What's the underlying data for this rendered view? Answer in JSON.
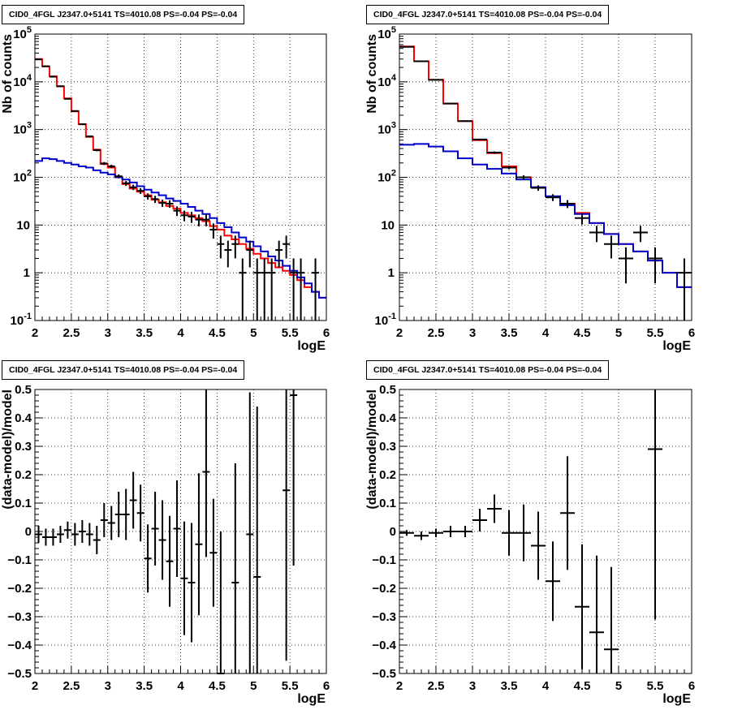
{
  "colors": {
    "data": "#000000",
    "total_model": "#ff0000",
    "background_model": "#0000cc",
    "grid": "#000000"
  },
  "chart_data": [
    {
      "type": "histogram",
      "title": "CID0_4FGL J2347.0+5141 TS=4010.08 PS=-0.04 PS=-0.04",
      "xlabel": "logE",
      "ylabel": "Nb of counts",
      "xlim": [
        2,
        6
      ],
      "ylim": [
        0.1,
        100000
      ],
      "yscale": "log",
      "grid": true,
      "xticks": [
        "2",
        "2.5",
        "3",
        "3.5",
        "4",
        "4.5",
        "5",
        "5.5",
        "6"
      ],
      "yticks": [
        "10^-1",
        "1",
        "10",
        "10^2",
        "10^3",
        "10^4",
        "10^5"
      ],
      "bin_edges": [
        2.0,
        2.1,
        2.2,
        2.3,
        2.4,
        2.5,
        2.6,
        2.7,
        2.8,
        2.9,
        3.0,
        3.1,
        3.2,
        3.3,
        3.4,
        3.5,
        3.6,
        3.7,
        3.8,
        3.9,
        4.0,
        4.1,
        4.2,
        4.3,
        4.4,
        4.5,
        4.6,
        4.7,
        4.8,
        4.9,
        5.0,
        5.1,
        5.2,
        5.3,
        5.4,
        5.5,
        5.6,
        5.7,
        5.8,
        5.9,
        6.0
      ],
      "series": [
        {
          "name": "total model",
          "style": "step",
          "values": [
            30000,
            21000,
            13000,
            8000,
            4500,
            2400,
            1300,
            700,
            380,
            190,
            160,
            100,
            72,
            58,
            50,
            42,
            34,
            30,
            25,
            22,
            18,
            16,
            14,
            12,
            9.5,
            8,
            6,
            5,
            4,
            3.2,
            2.5,
            2,
            1.6,
            1.3,
            1.1,
            0.9,
            0.7,
            0.5,
            0.4,
            0.3
          ]
        },
        {
          "name": "background model",
          "style": "step",
          "values": [
            220,
            250,
            240,
            220,
            200,
            185,
            170,
            160,
            140,
            125,
            115,
            100,
            90,
            78,
            65,
            55,
            48,
            42,
            36,
            32,
            28,
            24,
            20,
            17,
            14,
            11,
            9,
            7,
            5.5,
            4.5,
            3.6,
            2.8,
            2.2,
            1.8,
            1.4,
            1.1,
            0.8,
            0.6,
            0.4,
            0.3
          ]
        },
        {
          "name": "data",
          "style": "errorbar",
          "x": [
            2.05,
            2.15,
            2.25,
            2.35,
            2.45,
            2.55,
            2.65,
            2.75,
            2.85,
            2.95,
            3.05,
            3.15,
            3.25,
            3.35,
            3.45,
            3.55,
            3.65,
            3.75,
            3.85,
            3.95,
            4.05,
            4.15,
            4.25,
            4.35,
            4.45,
            4.55,
            4.65,
            4.75,
            4.85,
            4.95,
            5.05,
            5.15,
            5.25,
            5.35,
            5.45,
            5.55,
            5.65,
            5.75,
            5.85
          ],
          "y": [
            29500,
            21200,
            12800,
            8100,
            4400,
            2450,
            1290,
            720,
            370,
            195,
            170,
            105,
            75,
            62,
            52,
            40,
            35,
            29,
            28,
            20,
            16,
            15,
            13,
            13,
            8,
            4,
            3,
            4,
            1,
            3,
            1,
            1,
            1,
            3,
            4,
            1,
            1,
            0,
            1
          ],
          "yerr": [
            172,
            146,
            113,
            90,
            66,
            50,
            36,
            27,
            19,
            14,
            13,
            10,
            9,
            8,
            7,
            6,
            6,
            5,
            5,
            4.5,
            4,
            3.9,
            3.6,
            3.6,
            2.8,
            2,
            1.7,
            2,
            1,
            1.7,
            1,
            1,
            1,
            1.7,
            2,
            1,
            1,
            0,
            1
          ]
        }
      ]
    },
    {
      "type": "histogram",
      "title": "CID0_4FGL J2347.0+5141 TS=4010.08 PS=-0.04 PS=-0.04",
      "xlabel": "logE",
      "ylabel": "Nb of counts",
      "xlim": [
        2,
        6
      ],
      "ylim": [
        0.1,
        100000
      ],
      "yscale": "log",
      "grid": true,
      "xticks": [
        "2",
        "2.5",
        "3",
        "3.5",
        "4",
        "4.5",
        "5",
        "5.5",
        "6"
      ],
      "yticks": [
        "10^-1",
        "1",
        "10",
        "10^2",
        "10^3",
        "10^4",
        "10^5"
      ],
      "bin_edges": [
        2.0,
        2.2,
        2.4,
        2.6,
        2.8,
        3.0,
        3.2,
        3.4,
        3.6,
        3.8,
        4.0,
        4.2,
        4.4,
        4.6,
        4.8,
        5.0,
        5.2,
        5.4,
        5.6,
        5.8,
        6.0
      ],
      "series": [
        {
          "name": "total model",
          "style": "step",
          "values": [
            55000,
            27000,
            11000,
            3500,
            1500,
            600,
            320,
            170,
            100,
            62,
            40,
            28,
            18,
            11,
            6.5,
            4,
            2.8,
            1.8,
            1,
            0.5
          ]
        },
        {
          "name": "background model",
          "style": "step",
          "values": [
            480,
            500,
            440,
            350,
            250,
            185,
            150,
            120,
            90,
            62,
            40,
            26,
            17,
            11,
            6.5,
            4,
            2.8,
            1.8,
            1,
            0.5
          ]
        },
        {
          "name": "data",
          "style": "errorbar",
          "x": [
            2.1,
            2.3,
            2.5,
            2.7,
            2.9,
            3.1,
            3.3,
            3.5,
            3.7,
            3.9,
            4.1,
            4.3,
            4.5,
            4.7,
            4.9,
            5.1,
            5.3,
            5.5,
            5.7,
            5.9
          ],
          "y": [
            54000,
            27000,
            11000,
            3500,
            1500,
            620,
            330,
            160,
            100,
            60,
            38,
            28,
            14,
            7,
            4,
            2,
            7,
            2,
            0,
            1
          ],
          "yerr": [
            232,
            164,
            105,
            59,
            39,
            25,
            18,
            13,
            10,
            7.7,
            6.2,
            5.3,
            3.7,
            2.6,
            2,
            1.4,
            2.6,
            1.4,
            0,
            1
          ]
        }
      ]
    },
    {
      "type": "scatter",
      "title": "CID0_4FGL J2347.0+5141 TS=4010.08 PS=-0.04 PS=-0.04",
      "xlabel": "logE",
      "ylabel": "(data-model)/model",
      "xlim": [
        2,
        6
      ],
      "ylim": [
        -0.5,
        0.5
      ],
      "grid": true,
      "xticks": [
        "2",
        "2.5",
        "3",
        "3.5",
        "4",
        "4.5",
        "5",
        "5.5",
        "6"
      ],
      "yticks": [
        "-0.5",
        "-0.4",
        "-0.3",
        "-0.2",
        "-0.1",
        "0",
        "0.1",
        "0.2",
        "0.3",
        "0.4",
        "0.5"
      ],
      "series": [
        {
          "name": "residuals",
          "style": "errorbar",
          "xhalfwidth": 0.05,
          "x": [
            2.05,
            2.15,
            2.25,
            2.35,
            2.45,
            2.55,
            2.65,
            2.75,
            2.85,
            2.95,
            3.05,
            3.15,
            3.25,
            3.35,
            3.45,
            3.55,
            3.65,
            3.75,
            3.85,
            3.95,
            4.05,
            4.15,
            4.25,
            4.35,
            4.45,
            4.55,
            4.75,
            4.95,
            5.05,
            5.45,
            5.55
          ],
          "y": [
            -0.01,
            -0.02,
            -0.02,
            -0.01,
            0.005,
            -0.01,
            0.0,
            -0.01,
            -0.03,
            0.04,
            0.03,
            0.06,
            0.06,
            0.11,
            0.065,
            -0.095,
            0.01,
            -0.03,
            -0.105,
            0.01,
            -0.165,
            -0.18,
            -0.045,
            0.21,
            -0.075,
            -0.5,
            -0.18,
            -0.01,
            -0.16,
            0.145,
            0.48
          ],
          "yerr": [
            0.03,
            0.03,
            0.03,
            0.03,
            0.03,
            0.04,
            0.04,
            0.04,
            0.05,
            0.06,
            0.06,
            0.08,
            0.09,
            0.1,
            0.1,
            0.12,
            0.13,
            0.14,
            0.16,
            0.17,
            0.2,
            0.21,
            0.25,
            0.3,
            0.19,
            0.5,
            0.42,
            0.5,
            0.6,
            0.6,
            0.6
          ]
        }
      ]
    },
    {
      "type": "scatter",
      "title": "CID0_4FGL J2347.0+5141 TS=4010.08 PS=-0.04 PS=-0.04",
      "xlabel": "logE",
      "ylabel": "(data-model)/model",
      "xlim": [
        2,
        6
      ],
      "ylim": [
        -0.5,
        0.5
      ],
      "grid": true,
      "xticks": [
        "2",
        "2.5",
        "3",
        "3.5",
        "4",
        "4.5",
        "5",
        "5.5",
        "6"
      ],
      "yticks": [
        "-0.5",
        "-0.4",
        "-0.3",
        "-0.2",
        "-0.1",
        "0",
        "0.1",
        "0.2",
        "0.3",
        "0.4",
        "0.5"
      ],
      "series": [
        {
          "name": "residuals",
          "style": "errorbar",
          "xhalfwidth": 0.1,
          "x": [
            2.1,
            2.3,
            2.5,
            2.7,
            2.9,
            3.1,
            3.3,
            3.5,
            3.7,
            3.9,
            4.1,
            4.3,
            4.5,
            4.7,
            4.9,
            5.5
          ],
          "y": [
            -0.005,
            -0.015,
            -0.005,
            0.0,
            0.0,
            0.04,
            0.08,
            -0.005,
            -0.005,
            -0.05,
            -0.175,
            0.065,
            -0.265,
            -0.355,
            -0.415,
            0.29
          ],
          "yerr": [
            0.01,
            0.015,
            0.015,
            0.02,
            0.02,
            0.04,
            0.05,
            0.08,
            0.1,
            0.12,
            0.14,
            0.2,
            0.22,
            0.27,
            0.29,
            0.6
          ]
        }
      ]
    }
  ]
}
